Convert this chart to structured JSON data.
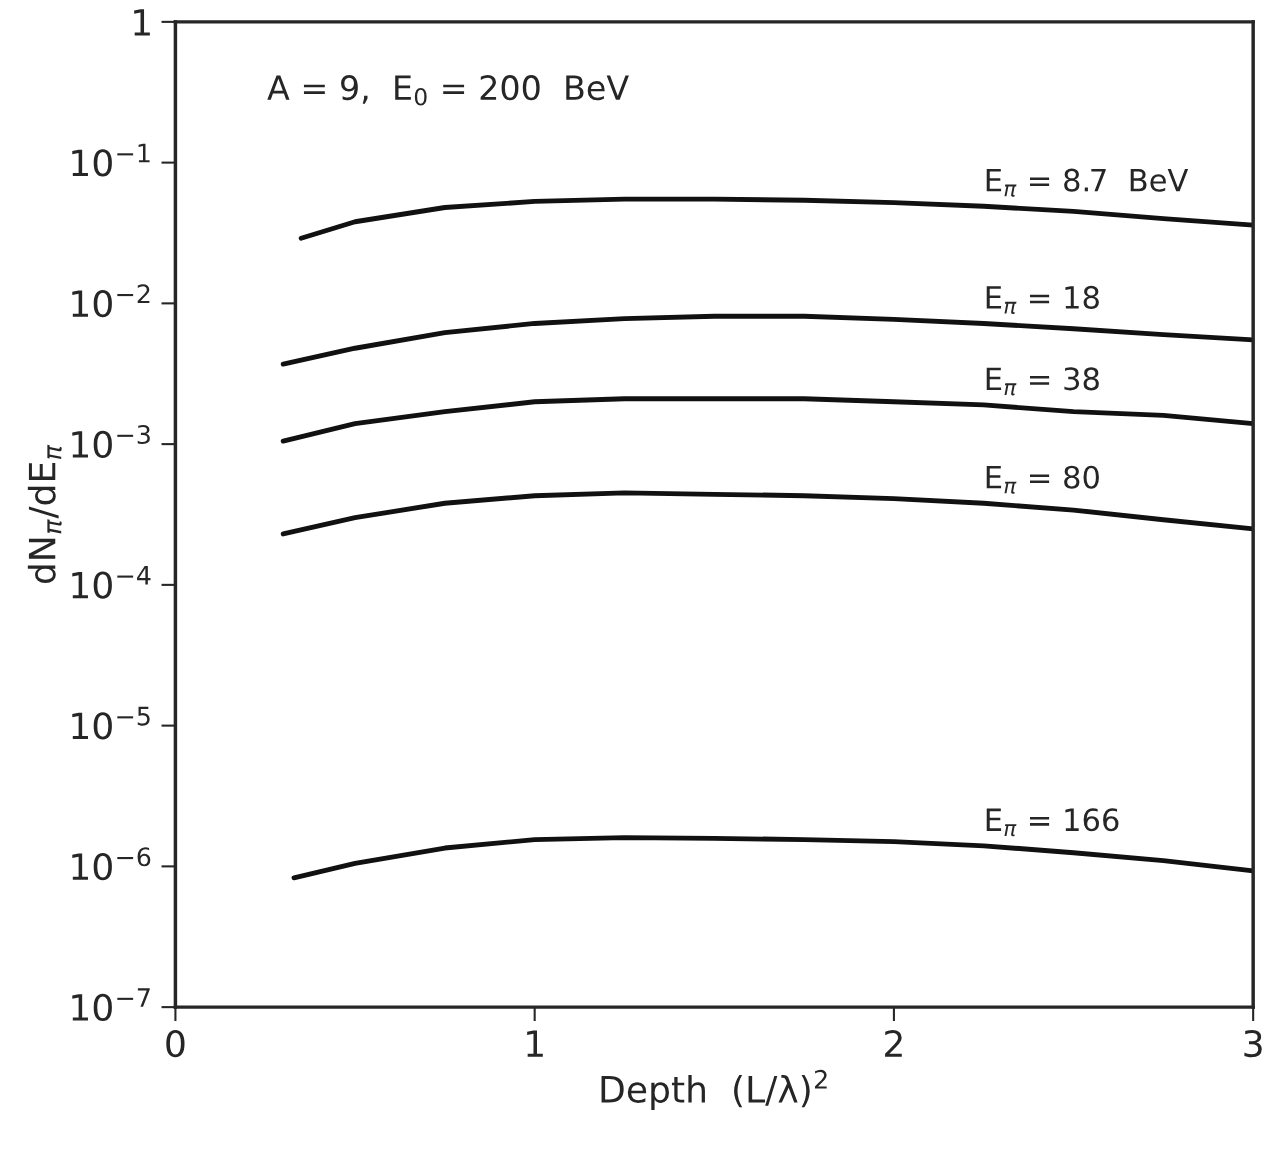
{
  "chart_data": {
    "type": "line",
    "xlabel": "Depth  (L/λ)$^{2}$",
    "ylabel": "dN$_{π}$/dE$_{π}$",
    "log": "y",
    "grid": false,
    "legend": false,
    "marker": "none",
    "line_style": "solid",
    "xlim": [
      0,
      3
    ],
    "xticks": [
      0,
      1,
      2,
      3
    ],
    "ylim": [
      1e-07,
      1
    ],
    "yticks": [
      {
        "value": 1e-07,
        "label": "10$^{−7}$"
      },
      {
        "value": 1e-06,
        "label": "10$^{−6}$"
      },
      {
        "value": 1e-05,
        "label": "10$^{−5}$"
      },
      {
        "value": 0.0001,
        "label": "10$^{−4}$"
      },
      {
        "value": 0.001,
        "label": "10$^{−3}$"
      },
      {
        "value": 0.01,
        "label": "10$^{−2}$"
      },
      {
        "value": 0.1,
        "label": "10$^{−1}$"
      },
      {
        "value": 1,
        "label": "1"
      }
    ],
    "annotations": [
      {
        "text": "A = 9,  E$_{0}$ = 200  BeV"
      }
    ],
    "series": [
      {
        "name": "E$_{π}$ = 8.7  BeV",
        "color": "#111111",
        "x": [
          0.35,
          0.5,
          0.75,
          1,
          1.25,
          1.5,
          1.75,
          2,
          2.25,
          2.5,
          2.75,
          3
        ],
        "values": [
          0.029,
          0.038,
          0.048,
          0.053,
          0.055,
          0.055,
          0.054,
          0.052,
          0.049,
          0.045,
          0.04,
          0.036
        ]
      },
      {
        "name": "E$_{π}$ = 18",
        "color": "#111111",
        "x": [
          0.3,
          0.5,
          0.75,
          1,
          1.25,
          1.5,
          1.75,
          2,
          2.25,
          2.5,
          2.75,
          3
        ],
        "values": [
          0.0037,
          0.0048,
          0.0062,
          0.0072,
          0.0078,
          0.0081,
          0.0081,
          0.0077,
          0.0072,
          0.0066,
          0.006,
          0.0055
        ]
      },
      {
        "name": "E$_{π}$ = 38",
        "color": "#111111",
        "x": [
          0.3,
          0.5,
          0.75,
          1,
          1.25,
          1.5,
          1.75,
          2,
          2.25,
          2.5,
          2.75,
          3
        ],
        "values": [
          0.00105,
          0.0014,
          0.0017,
          0.002,
          0.0021,
          0.0021,
          0.0021,
          0.002,
          0.0019,
          0.0017,
          0.0016,
          0.0014
        ]
      },
      {
        "name": "E$_{π}$ = 80",
        "color": "#111111",
        "x": [
          0.3,
          0.5,
          0.75,
          1,
          1.25,
          1.5,
          1.75,
          2,
          2.25,
          2.5,
          2.75,
          3
        ],
        "values": [
          0.00023,
          0.0003,
          0.00038,
          0.00043,
          0.00045,
          0.00044,
          0.00043,
          0.00041,
          0.00038,
          0.00034,
          0.00029,
          0.00025
        ]
      },
      {
        "name": "E$_{π}$ = 166",
        "color": "#111111",
        "x": [
          0.33,
          0.5,
          0.75,
          1,
          1.25,
          1.5,
          1.75,
          2,
          2.25,
          2.5,
          2.75,
          3
        ],
        "values": [
          8.3e-07,
          1.05e-06,
          1.35e-06,
          1.55e-06,
          1.6e-06,
          1.58e-06,
          1.55e-06,
          1.5e-06,
          1.4e-06,
          1.25e-06,
          1.1e-06,
          9.3e-07
        ]
      }
    ]
  }
}
